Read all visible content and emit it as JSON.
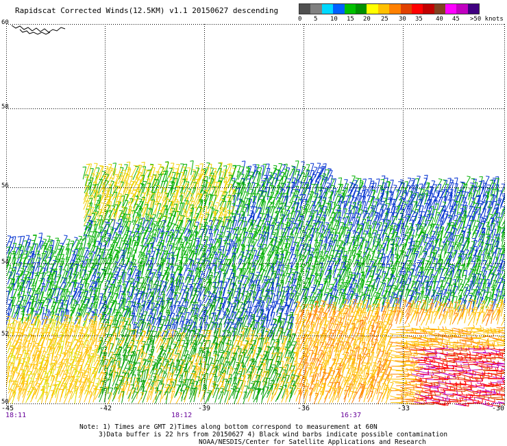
{
  "header": {
    "title": "Rapidscat Corrected Winds(12.5KM) v1.1 20150627 descending"
  },
  "legend": {
    "colors": [
      "#505050",
      "#8a8a8a",
      "#00d8ff",
      "#0060ff",
      "#1818c8",
      "#00c000",
      "#009000",
      "#ffff00",
      "#ffc000",
      "#ff8000",
      "#e05000",
      "#ff0000",
      "#c00000",
      "#804020",
      "#603010",
      "#ff00ff",
      "#c000c0",
      "#8000c0",
      "#400080"
    ],
    "labels": [
      "0",
      "5",
      "10",
      "15",
      "20",
      "25",
      "30",
      "35",
      "40",
      "45",
      ">50 knots"
    ]
  },
  "axes": {
    "y_labels": [
      "60",
      "58",
      "56",
      "54",
      "52",
      "50"
    ],
    "x_labels": [
      "-45",
      "-42",
      "-39",
      "-36",
      "-33",
      "-30"
    ],
    "times": [
      "18:11",
      "18:12",
      "16:37"
    ]
  },
  "notes": {
    "line1": "Note: 1) Times are GMT 2)Times along bottom correspond to measurement at 60N",
    "line2": "3)Data buffer is 22 hrs from 20150627 4) Black wind barbs indicate possible contamination",
    "line3": "NOAA/NESDIS/Center for Satellite Applications and Research"
  }
}
